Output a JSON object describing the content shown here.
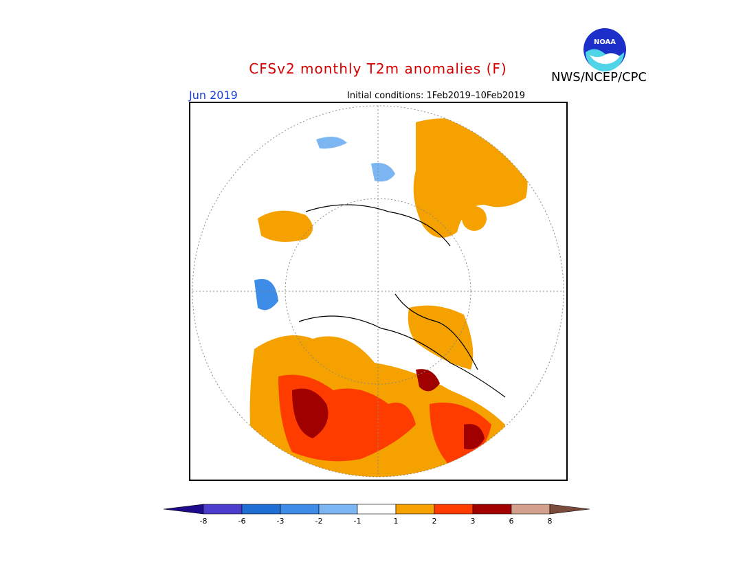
{
  "header": {
    "title": "CFSv2 monthly T2m anomalies (F)",
    "agency": "NWS/NCEP/CPC",
    "month": "Jun 2019",
    "initial_conditions": "Initial conditions: 1Feb2019–10Feb2019",
    "logo_text": "NOAA"
  },
  "colorbar": {
    "labels": [
      "-8",
      "-6",
      "-3",
      "-2",
      "-1",
      "1",
      "2",
      "3",
      "6",
      "8"
    ],
    "colors": [
      "#1e0a8c",
      "#4b3ccc",
      "#1f6ed4",
      "#3c8ce8",
      "#7cb6f2",
      "#ffffff",
      "#f5a100",
      "#ff3c00",
      "#a00000",
      "#d2a08c",
      "#7a4a3a"
    ]
  },
  "map": {
    "projection": "north polar stereographic",
    "anomaly_colors": {
      "warm1": "#f5a100",
      "warm2": "#ff3c00",
      "warm3": "#a00000",
      "cool1": "#7cb6f2",
      "cool2": "#3c8ce8"
    }
  }
}
